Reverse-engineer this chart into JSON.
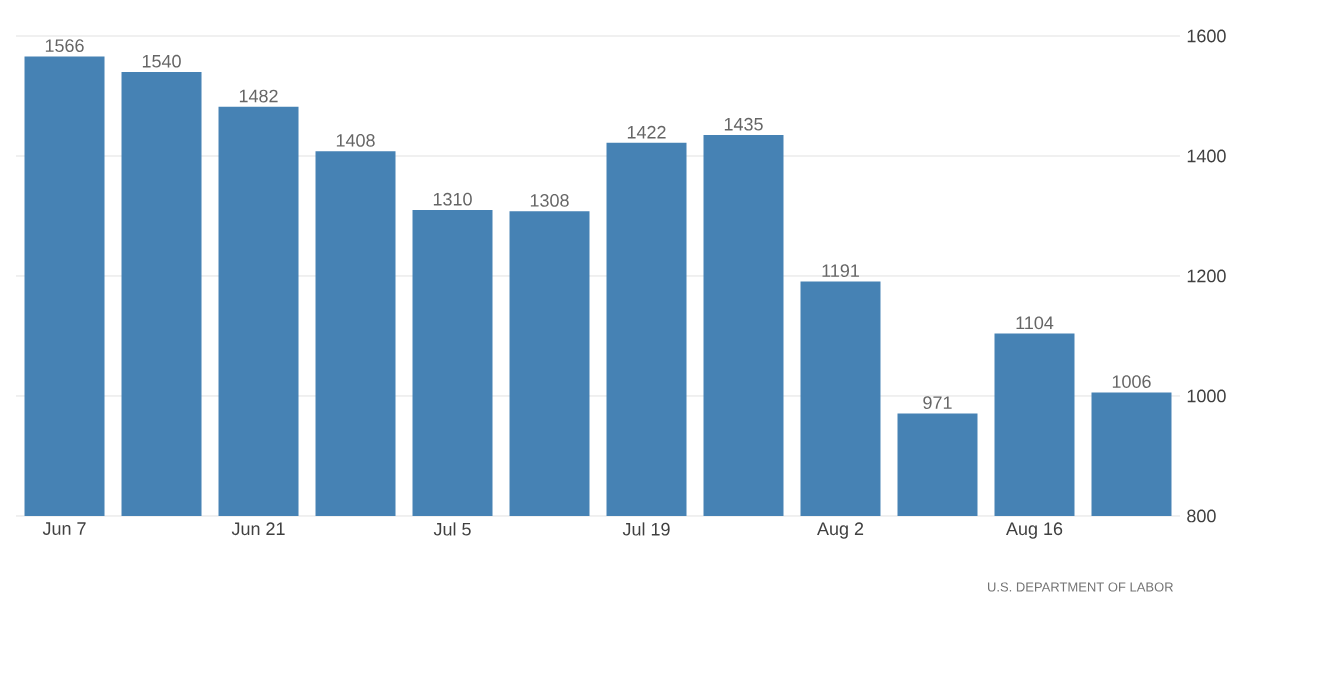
{
  "chart_data": {
    "type": "bar",
    "categories": [
      "Jun 7",
      null,
      "Jun 21",
      null,
      "Jul 5",
      null,
      "Jul 19",
      null,
      "Aug 2",
      null,
      "Aug 16",
      null
    ],
    "values": [
      1566,
      1540,
      1482,
      1408,
      1310,
      1308,
      1422,
      1435,
      1191,
      971,
      1104,
      1006
    ],
    "color": "#4682b4",
    "ylim": [
      800,
      1600
    ],
    "yticks": [
      800,
      1000,
      1200,
      1400,
      1600
    ],
    "grid": "y",
    "data_labels": true,
    "annotations": [
      "U.S. DEPARTMENT OF LABOR"
    ]
  }
}
